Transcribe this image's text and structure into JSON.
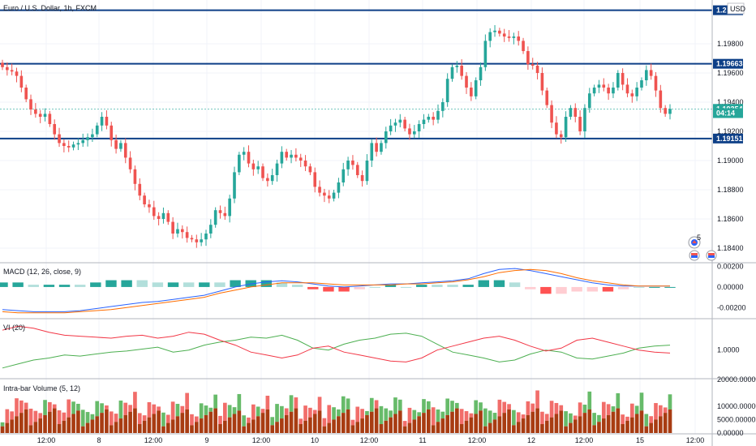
{
  "header": {
    "symbol_title": "Euro / U.S. Dollar, 1h, FXCM",
    "currency_badge": "USD"
  },
  "chart_data": [
    {
      "type": "candlestick",
      "title": "Euro / U.S. Dollar, 1h, FXCM",
      "ylim": [
        1.183,
        1.201
      ],
      "yticks": [
        "1.19800",
        "1.19600",
        "1.19400",
        "1.19200",
        "1.19000",
        "1.18800",
        "1.18600",
        "1.18400"
      ],
      "ytick_values": [
        1.198,
        1.196,
        1.194,
        1.192,
        1.19,
        1.188,
        1.186,
        1.184
      ],
      "xtick_labels": [
        "12:00",
        "8",
        "12:00",
        "9",
        "12:00",
        "10",
        "12:00",
        "11",
        "12:00",
        "12",
        "12:00",
        "15",
        "12:00"
      ],
      "price_labels": [
        {
          "text": "1.2",
          "value": 1.2003,
          "kind": "line"
        },
        {
          "text": "1.19663",
          "value": 1.19663,
          "kind": "line"
        },
        {
          "text": "1.19354",
          "value": 1.19354,
          "kind": "last"
        },
        {
          "text": "04:14",
          "value": 1.19325,
          "kind": "countdown"
        },
        {
          "text": "1.19151",
          "value": 1.19151,
          "kind": "line"
        }
      ],
      "horizontal_lines": [
        1.2003,
        1.19663,
        1.19151
      ],
      "last_price": 1.19354,
      "close_series": [
        1.1964,
        1.1962,
        1.1961,
        1.1958,
        1.195,
        1.1942,
        1.1935,
        1.1932,
        1.193,
        1.1932,
        1.1925,
        1.1918,
        1.1912,
        1.191,
        1.1909,
        1.1911,
        1.1912,
        1.1914,
        1.1916,
        1.1918,
        1.1924,
        1.193,
        1.1924,
        1.1914,
        1.1908,
        1.1912,
        1.1902,
        1.1894,
        1.1884,
        1.1876,
        1.187,
        1.1868,
        1.1862,
        1.186,
        1.1864,
        1.1858,
        1.185,
        1.1853,
        1.1851,
        1.1847,
        1.1846,
        1.1844,
        1.1846,
        1.185,
        1.1856,
        1.1866,
        1.1864,
        1.1862,
        1.1874,
        1.1892,
        1.1904,
        1.1906,
        1.1898,
        1.1894,
        1.1896,
        1.1888,
        1.1886,
        1.189,
        1.1898,
        1.1906,
        1.1902,
        1.1904,
        1.1902,
        1.19,
        1.1896,
        1.1892,
        1.1882,
        1.1878,
        1.1876,
        1.1874,
        1.1878,
        1.1885,
        1.1894,
        1.19,
        1.1897,
        1.189,
        1.1886,
        1.19,
        1.1912,
        1.1906,
        1.1912,
        1.192,
        1.1924,
        1.1926,
        1.1928,
        1.1922,
        1.1918,
        1.192,
        1.1925,
        1.1928,
        1.193,
        1.1928,
        1.1934,
        1.194,
        1.1956,
        1.1964,
        1.1965,
        1.1958,
        1.195,
        1.1944,
        1.1955,
        1.1964,
        1.1982,
        1.1988,
        1.1989,
        1.1987,
        1.1985,
        1.1984,
        1.1985,
        1.1982,
        1.1975,
        1.1966,
        1.1965,
        1.196,
        1.1948,
        1.1938,
        1.1926,
        1.1918,
        1.1916,
        1.193,
        1.1936,
        1.193,
        1.192,
        1.1936,
        1.1946,
        1.195,
        1.1952,
        1.195,
        1.1946,
        1.195,
        1.196,
        1.1952,
        1.1946,
        1.1944,
        1.195,
        1.1955,
        1.1962,
        1.1958,
        1.1948,
        1.1936,
        1.1932,
        1.19354
      ],
      "indicators": [
        {
          "title": "MACD (12, 26, close, 9)",
          "type": "line+histogram",
          "yticks": [
            "0.00200",
            "0.00000",
            "-0.00200"
          ],
          "ytick_values": [
            0.002,
            0.0,
            -0.002
          ],
          "ylim": [
            -0.003,
            0.0022
          ],
          "macd": [
            -0.0022,
            -0.0023,
            -0.0024,
            -0.0024,
            -0.0024,
            -0.0023,
            -0.0021,
            -0.0019,
            -0.0017,
            -0.0015,
            -0.0014,
            -0.0012,
            -0.001,
            -0.0008,
            -0.0004,
            0.0,
            0.0003,
            0.0005,
            0.0006,
            0.0005,
            0.0003,
            0.0001,
            0.0,
            0.0001,
            0.0002,
            0.0003,
            0.0003,
            0.0004,
            0.0005,
            0.0006,
            0.0008,
            0.0013,
            0.0017,
            0.0018,
            0.0016,
            0.0013,
            0.001,
            0.0007,
            0.0004,
            0.0002,
            0.0001,
            0.0001,
            0.0001,
            0.0001
          ],
          "signal": [
            -0.0024,
            -0.0025,
            -0.0025,
            -0.0025,
            -0.0025,
            -0.0024,
            -0.0023,
            -0.0022,
            -0.002,
            -0.0018,
            -0.0016,
            -0.0014,
            -0.0012,
            -0.001,
            -0.0006,
            -0.0003,
            0.0,
            0.0002,
            0.0004,
            0.0004,
            0.0004,
            0.0003,
            0.0002,
            0.0002,
            0.0002,
            0.0002,
            0.0003,
            0.0003,
            0.0004,
            0.0005,
            0.0007,
            0.001,
            0.0014,
            0.0016,
            0.0017,
            0.0016,
            0.0013,
            0.0009,
            0.0006,
            0.0004,
            0.0002,
            0.0001,
            0.0001,
            0.0001
          ]
        },
        {
          "title": "VI (20)",
          "type": "line",
          "yticks": [
            "1.0000"
          ],
          "ytick_values": [
            1.0
          ],
          "ylim": [
            0.72,
            1.3
          ],
          "vi_plus": [
            0.82,
            0.86,
            0.9,
            0.92,
            0.95,
            0.94,
            0.96,
            0.98,
            0.99,
            1.01,
            1.03,
            0.98,
            1.0,
            1.05,
            1.08,
            1.1,
            1.13,
            1.12,
            1.15,
            1.1,
            1.02,
            1.0,
            1.06,
            1.1,
            1.12,
            1.16,
            1.17,
            1.14,
            1.06,
            0.98,
            0.95,
            0.92,
            0.88,
            0.9,
            0.96,
            1.0,
            0.98,
            0.92,
            0.91,
            0.94,
            0.97,
            1.02,
            1.04,
            1.05
          ],
          "vi_minus": [
            1.2,
            1.24,
            1.22,
            1.18,
            1.15,
            1.14,
            1.13,
            1.12,
            1.14,
            1.15,
            1.12,
            1.14,
            1.18,
            1.16,
            1.1,
            1.05,
            0.98,
            0.95,
            0.92,
            0.95,
            1.02,
            1.04,
            0.98,
            0.95,
            0.92,
            0.89,
            0.88,
            0.92,
            1.0,
            1.04,
            1.08,
            1.12,
            1.14,
            1.1,
            1.04,
            0.99,
            1.02,
            1.1,
            1.12,
            1.08,
            1.04,
            1.0,
            0.98,
            0.97
          ]
        },
        {
          "title": "Intra-bar Volume (5, 12)",
          "type": "stacked-histogram",
          "yticks": [
            "20000.00000",
            "10000.00000",
            "5000.00000",
            "0.00000"
          ],
          "ytick_values": [
            20000,
            10000,
            5000,
            0
          ],
          "ylim": [
            0,
            20000
          ]
        }
      ]
    }
  ],
  "colors": {
    "up": "#26a69a",
    "down": "#ef5350",
    "hline": "#0d3f87",
    "macd": "#2962ff",
    "signal": "#ff6d00",
    "vi_plus": "#4caf50",
    "vi_minus": "#f23645",
    "vol_buy": "#4caf50",
    "vol_sell": "#ef5350",
    "vol_base": "#a83c12"
  },
  "icons": [
    "gauge-icon",
    "calendar-flag-icon",
    "calendar-flag-icon"
  ],
  "badge_count": "5"
}
